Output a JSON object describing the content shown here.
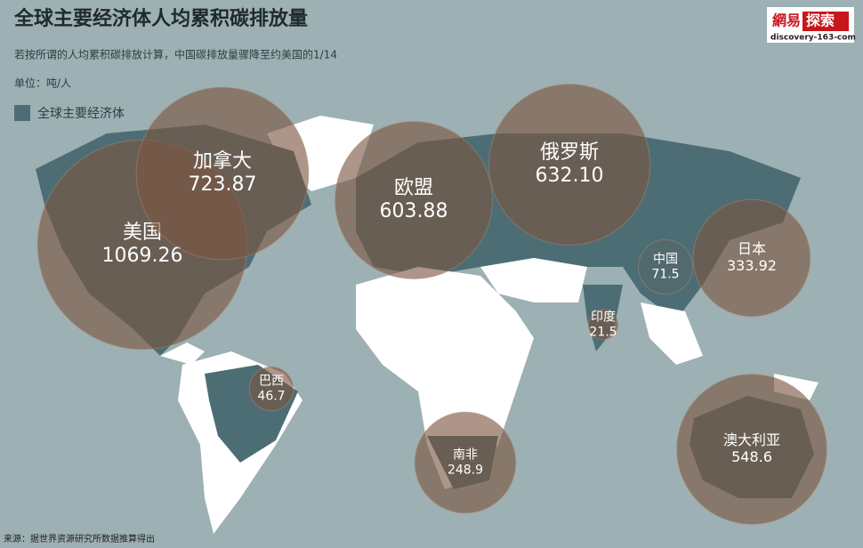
{
  "header": {
    "title": "全球主要经济体人均累积碳排放量",
    "subtitle": "若按所谓的人均累积碳排放计算，中国碳排放量骤降至约美国的1/14",
    "unit": "单位：吨/人",
    "legend": "全球主要经济体"
  },
  "logo": {
    "brand": "網易",
    "brand_highlight": "探索",
    "site": "discovery-163-com"
  },
  "source": "来源：据世界资源研究所数据推算得出",
  "bubbles": {
    "names": [
      "美国",
      "加拿大",
      "欧盟",
      "俄罗斯",
      "日本",
      "中国",
      "印度",
      "巴西",
      "南非",
      "澳大利亚"
    ],
    "values": [
      1069.26,
      723.87,
      603.88,
      632.1,
      333.92,
      71.5,
      21.5,
      46.7,
      248.9,
      548.6
    ],
    "value_labels": [
      "1069.26",
      "723.87",
      "603.88",
      "632.10",
      "333.92",
      "71.5",
      "21.5",
      "46.7",
      "248.9",
      "548.6"
    ]
  }
}
